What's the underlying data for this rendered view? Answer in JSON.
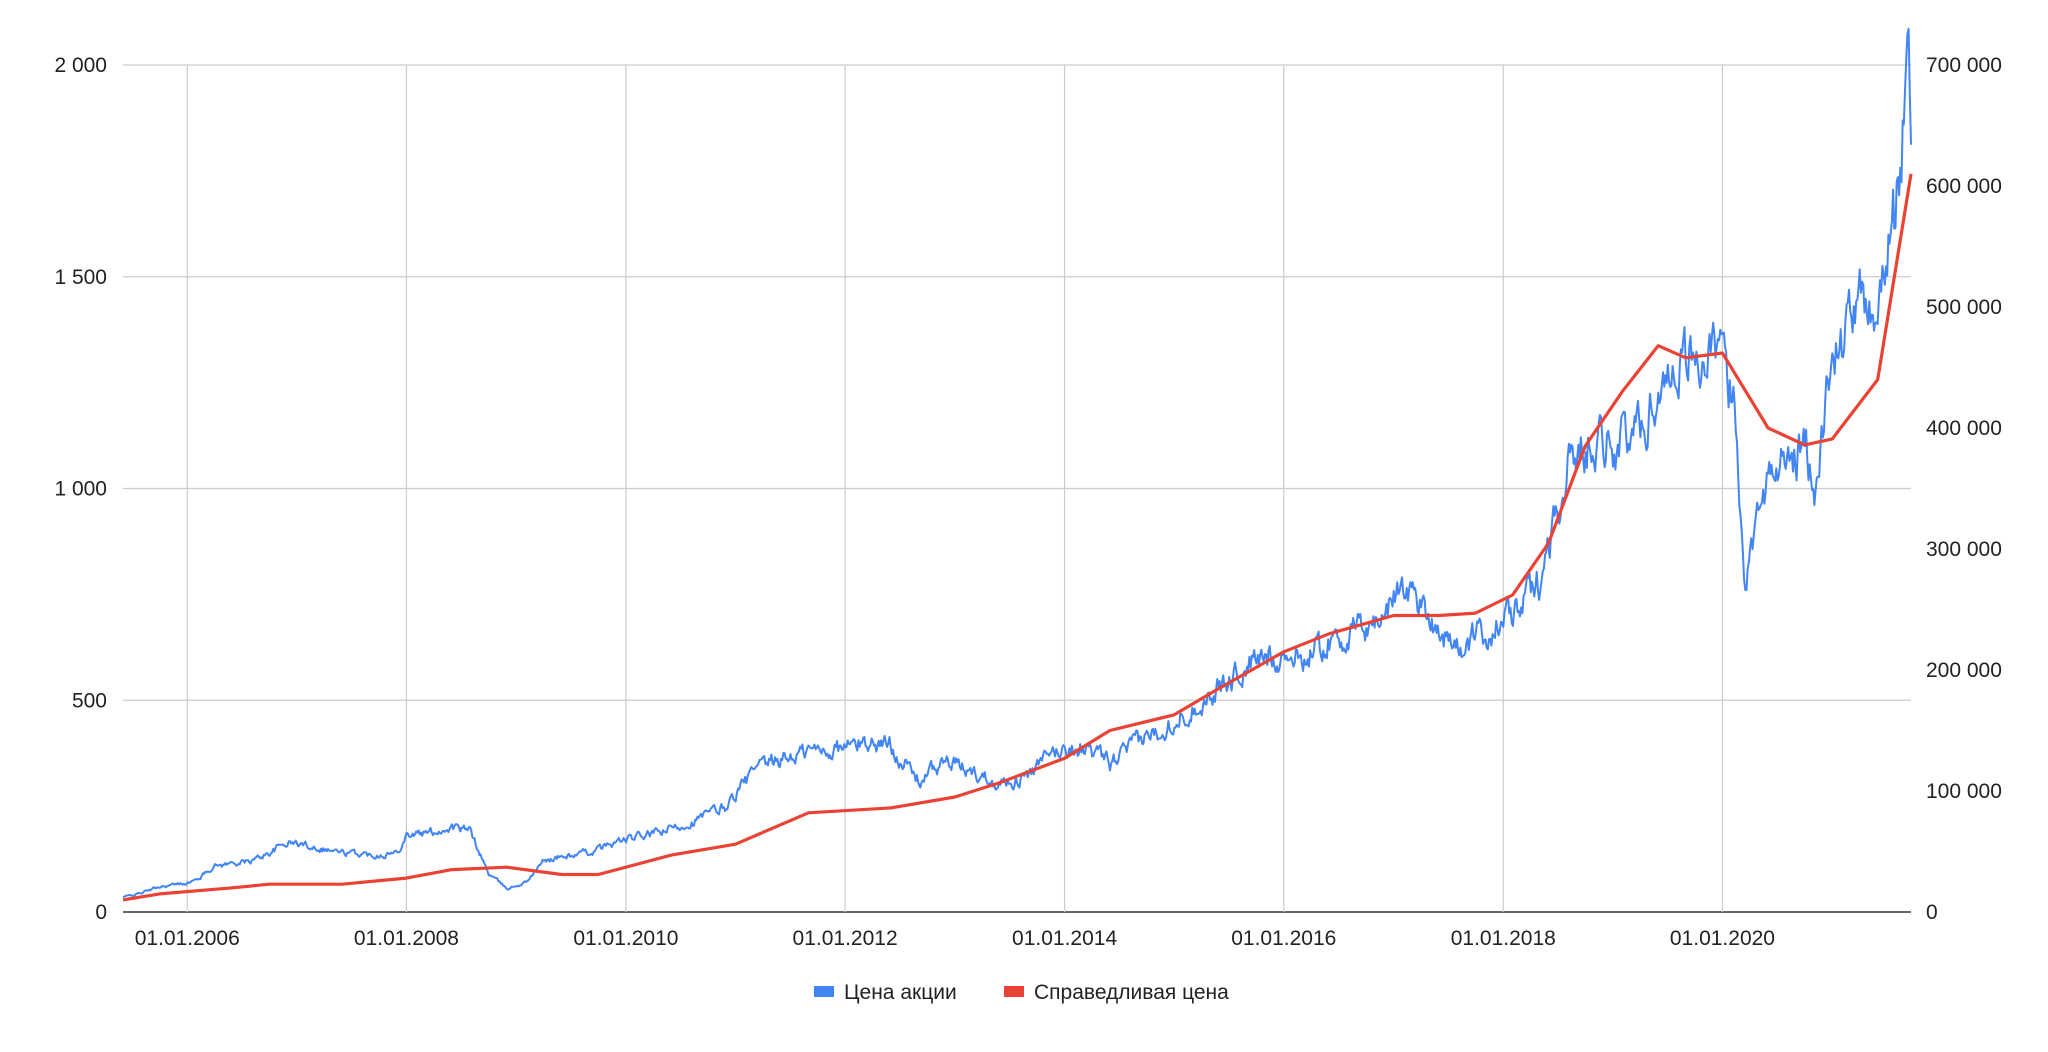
{
  "chart_data": {
    "type": "line",
    "title": "",
    "xlabel": "",
    "ylabel": "",
    "x_ticks": [
      "01.01.2006",
      "01.01.2008",
      "01.01.2010",
      "01.01.2012",
      "01.01.2014",
      "01.01.2016",
      "01.01.2018",
      "01.01.2020"
    ],
    "y_left_ticks": [
      "0",
      "500",
      "1 000",
      "1 500",
      "2 000"
    ],
    "y_right_ticks": [
      "0",
      "100 000",
      "200 000",
      "300 000",
      "400 000",
      "500 000",
      "600 000",
      "700 000"
    ],
    "y_left_range": [
      0,
      2000
    ],
    "y_right_range": [
      0,
      700000
    ],
    "x_range": [
      "2005-06-01",
      "2021-09-20"
    ],
    "grid": true,
    "legend_position": "bottom",
    "series": [
      {
        "name": "Цена акции",
        "axis": "left",
        "color": "#4285f4",
        "points": [
          [
            "2005-06-01",
            35
          ],
          [
            "2005-08-01",
            45
          ],
          [
            "2005-10-01",
            60
          ],
          [
            "2005-12-01",
            65
          ],
          [
            "2006-02-01",
            75
          ],
          [
            "2006-04-01",
            110
          ],
          [
            "2006-06-01",
            115
          ],
          [
            "2006-08-01",
            120
          ],
          [
            "2006-10-01",
            140
          ],
          [
            "2006-12-01",
            165
          ],
          [
            "2007-03-01",
            155
          ],
          [
            "2007-06-01",
            140
          ],
          [
            "2007-09-01",
            135
          ],
          [
            "2007-12-01",
            140
          ],
          [
            "2008-01-01",
            185
          ],
          [
            "2008-03-01",
            185
          ],
          [
            "2008-06-01",
            200
          ],
          [
            "2008-08-01",
            190
          ],
          [
            "2008-10-01",
            90
          ],
          [
            "2008-12-01",
            55
          ],
          [
            "2009-02-01",
            70
          ],
          [
            "2009-04-01",
            120
          ],
          [
            "2009-06-01",
            130
          ],
          [
            "2009-09-01",
            140
          ],
          [
            "2009-12-01",
            165
          ],
          [
            "2010-03-01",
            180
          ],
          [
            "2010-06-01",
            195
          ],
          [
            "2010-09-01",
            220
          ],
          [
            "2010-12-01",
            250
          ],
          [
            "2011-03-01",
            330
          ],
          [
            "2011-06-01",
            360
          ],
          [
            "2011-09-01",
            380
          ],
          [
            "2011-12-01",
            385
          ],
          [
            "2012-03-01",
            400
          ],
          [
            "2012-06-01",
            395
          ],
          [
            "2012-09-01",
            310
          ],
          [
            "2012-12-01",
            355
          ],
          [
            "2013-03-01",
            330
          ],
          [
            "2013-06-01",
            305
          ],
          [
            "2013-09-01",
            320
          ],
          [
            "2013-12-01",
            380
          ],
          [
            "2014-03-01",
            390
          ],
          [
            "2014-06-01",
            350
          ],
          [
            "2014-09-01",
            400
          ],
          [
            "2014-12-01",
            440
          ],
          [
            "2015-03-01",
            480
          ],
          [
            "2015-06-01",
            530
          ],
          [
            "2015-09-01",
            580
          ],
          [
            "2015-12-01",
            610
          ],
          [
            "2016-03-01",
            600
          ],
          [
            "2016-06-01",
            640
          ],
          [
            "2016-09-01",
            660
          ],
          [
            "2016-12-01",
            700
          ],
          [
            "2017-02-01",
            780
          ],
          [
            "2017-05-01",
            700
          ],
          [
            "2017-08-01",
            620
          ],
          [
            "2017-11-01",
            660
          ],
          [
            "2018-02-01",
            700
          ],
          [
            "2018-05-01",
            780
          ],
          [
            "2018-08-01",
            1050
          ],
          [
            "2018-11-01",
            1130
          ],
          [
            "2019-02-01",
            1100
          ],
          [
            "2019-05-01",
            1180
          ],
          [
            "2019-08-01",
            1320
          ],
          [
            "2019-11-01",
            1310
          ],
          [
            "2020-01-01",
            1300
          ],
          [
            "2020-02-15",
            1180
          ],
          [
            "2020-03-20",
            750
          ],
          [
            "2020-05-01",
            1000
          ],
          [
            "2020-08-01",
            1060
          ],
          [
            "2020-10-01",
            1100
          ],
          [
            "2020-11-15",
            1000
          ],
          [
            "2020-12-15",
            1250
          ],
          [
            "2021-03-01",
            1400
          ],
          [
            "2021-06-01",
            1450
          ],
          [
            "2021-08-01",
            1650
          ],
          [
            "2021-09-10",
            1990
          ],
          [
            "2021-09-20",
            1880
          ]
        ]
      },
      {
        "name": "Справедливая цена",
        "axis": "right",
        "color": "#ea4335",
        "points": [
          [
            "2005-06-01",
            10000
          ],
          [
            "2005-10-01",
            15000
          ],
          [
            "2006-06-01",
            20000
          ],
          [
            "2006-10-01",
            23000
          ],
          [
            "2007-06-01",
            23000
          ],
          [
            "2008-01-01",
            28000
          ],
          [
            "2008-06-01",
            35000
          ],
          [
            "2008-12-01",
            37000
          ],
          [
            "2009-06-01",
            31000
          ],
          [
            "2009-10-01",
            31000
          ],
          [
            "2010-06-01",
            47000
          ],
          [
            "2011-01-01",
            56000
          ],
          [
            "2011-09-01",
            82000
          ],
          [
            "2012-06-01",
            86000
          ],
          [
            "2013-01-01",
            95000
          ],
          [
            "2013-06-01",
            107000
          ],
          [
            "2014-01-01",
            127000
          ],
          [
            "2014-06-01",
            150000
          ],
          [
            "2015-01-01",
            163000
          ],
          [
            "2015-06-01",
            185000
          ],
          [
            "2016-01-01",
            215000
          ],
          [
            "2016-06-01",
            230000
          ],
          [
            "2017-01-01",
            245000
          ],
          [
            "2017-06-01",
            245000
          ],
          [
            "2017-10-01",
            247000
          ],
          [
            "2018-02-01",
            262000
          ],
          [
            "2018-06-01",
            305000
          ],
          [
            "2018-10-01",
            385000
          ],
          [
            "2019-02-01",
            430000
          ],
          [
            "2019-06-01",
            468000
          ],
          [
            "2019-09-01",
            458000
          ],
          [
            "2020-01-01",
            462000
          ],
          [
            "2020-06-01",
            400000
          ],
          [
            "2020-10-01",
            386000
          ],
          [
            "2021-01-01",
            391000
          ],
          [
            "2021-06-01",
            440000
          ],
          [
            "2021-09-20",
            610000
          ]
        ]
      }
    ]
  },
  "legend": {
    "items": [
      {
        "label": "Цена акции",
        "color": "#4285f4"
      },
      {
        "label": "Справедливая цена",
        "color": "#ea4335"
      }
    ]
  }
}
